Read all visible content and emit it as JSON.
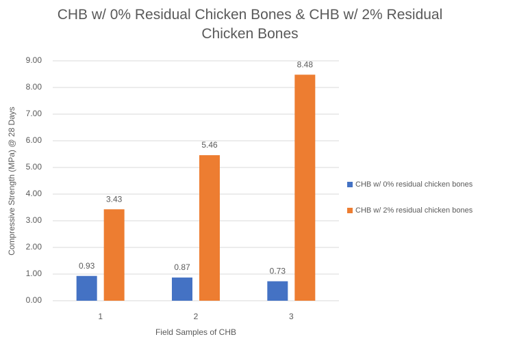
{
  "chart_data": {
    "type": "bar",
    "title": "CHB w/ 0% Residual Chicken Bones & CHB w/ 2% Residual Chicken Bones",
    "x_label": "Field Samples of CHB",
    "y_label": "Compressive Strength (MPa) @ 28 Days",
    "categories": [
      "1",
      "2",
      "3"
    ],
    "series": [
      {
        "name": "CHB w/ 0% residual chicken bones",
        "color": "#4472c4",
        "values": [
          0.93,
          0.87,
          0.73
        ]
      },
      {
        "name": "CHB w/ 2% residual chicken bones",
        "color": "#ed7d31",
        "values": [
          3.43,
          5.46,
          8.48
        ]
      }
    ],
    "ylim": [
      0,
      9
    ],
    "yticks": [
      {
        "value": 0,
        "label": "0.00"
      },
      {
        "value": 1,
        "label": "1.00"
      },
      {
        "value": 2,
        "label": "2.00"
      },
      {
        "value": 3,
        "label": "3.00"
      },
      {
        "value": 4,
        "label": "4.00"
      },
      {
        "value": 5,
        "label": "5.00"
      },
      {
        "value": 6,
        "label": "6.00"
      },
      {
        "value": 7,
        "label": "7.00"
      },
      {
        "value": 8,
        "label": "8.00"
      },
      {
        "value": 9,
        "label": "9.00"
      }
    ],
    "grid": true,
    "legend": "right"
  }
}
